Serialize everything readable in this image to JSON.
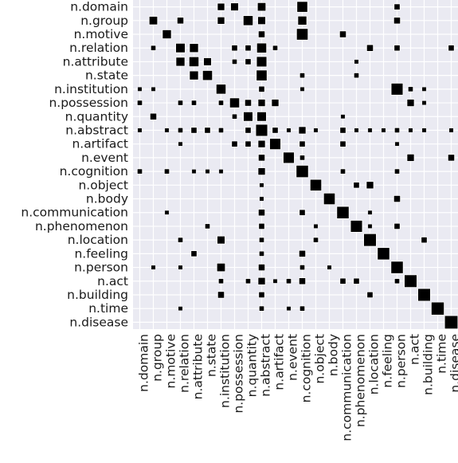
{
  "chart_data": {
    "type": "heatmap",
    "style": "hinton",
    "title": "",
    "xlabel": "",
    "ylabel": "",
    "grid": true,
    "background_color": "#eaeaf2",
    "grid_color": "#ffffff",
    "mark_fill_color": "#000000",
    "mark_outline_color": "#ffffff",
    "labels": [
      "n.domain",
      "n.group",
      "n.motive",
      "n.relation",
      "n.attribute",
      "n.state",
      "n.institution",
      "n.possession",
      "n.quantity",
      "n.abstract",
      "n.artifact",
      "n.event",
      "n.cognition",
      "n.object",
      "n.body",
      "n.communication",
      "n.phenomenon",
      "n.location",
      "n.feeling",
      "n.person",
      "n.act",
      "n.building",
      "n.time",
      "n.disease"
    ],
    "cells": [
      [
        0,
        6,
        0.3
      ],
      [
        0,
        7,
        0.35
      ],
      [
        0,
        9,
        0.4
      ],
      [
        0,
        12,
        0.65
      ],
      [
        0,
        19,
        0.2
      ],
      [
        1,
        1,
        0.4
      ],
      [
        1,
        3,
        0.25
      ],
      [
        1,
        6,
        0.3
      ],
      [
        1,
        8,
        0.55
      ],
      [
        1,
        9,
        0.35
      ],
      [
        1,
        12,
        0.45
      ],
      [
        1,
        19,
        0.25
      ],
      [
        2,
        2,
        0.45
      ],
      [
        2,
        9,
        0.25
      ],
      [
        2,
        12,
        0.75
      ],
      [
        2,
        15,
        0.25
      ],
      [
        3,
        1,
        0.15
      ],
      [
        3,
        3,
        0.5
      ],
      [
        3,
        4,
        0.45
      ],
      [
        3,
        7,
        0.2
      ],
      [
        3,
        8,
        0.2
      ],
      [
        3,
        9,
        0.55
      ],
      [
        3,
        10,
        0.15
      ],
      [
        3,
        17,
        0.25
      ],
      [
        3,
        19,
        0.2
      ],
      [
        3,
        23,
        0.2
      ],
      [
        4,
        3,
        0.45
      ],
      [
        4,
        4,
        0.55
      ],
      [
        4,
        5,
        0.35
      ],
      [
        4,
        7,
        0.15
      ],
      [
        4,
        8,
        0.2
      ],
      [
        4,
        9,
        0.6
      ],
      [
        4,
        16,
        0.1
      ],
      [
        5,
        4,
        0.45
      ],
      [
        5,
        5,
        0.55
      ],
      [
        5,
        9,
        0.65
      ],
      [
        5,
        12,
        0.15
      ],
      [
        5,
        16,
        0.15
      ],
      [
        6,
        0,
        0.1
      ],
      [
        6,
        1,
        0.1
      ],
      [
        6,
        6,
        0.55
      ],
      [
        6,
        9,
        0.2
      ],
      [
        6,
        12,
        0.1
      ],
      [
        6,
        19,
        0.8
      ],
      [
        6,
        20,
        0.15
      ],
      [
        6,
        21,
        0.1
      ],
      [
        7,
        0,
        0.15
      ],
      [
        7,
        3,
        0.15
      ],
      [
        7,
        4,
        0.15
      ],
      [
        7,
        6,
        0.15
      ],
      [
        7,
        7,
        0.55
      ],
      [
        7,
        8,
        0.25
      ],
      [
        7,
        9,
        0.3
      ],
      [
        7,
        10,
        0.3
      ],
      [
        7,
        20,
        0.3
      ],
      [
        7,
        21,
        0.1
      ],
      [
        8,
        1,
        0.25
      ],
      [
        8,
        7,
        0.15
      ],
      [
        8,
        8,
        0.5
      ],
      [
        8,
        9,
        0.5
      ],
      [
        8,
        15,
        0.1
      ],
      [
        9,
        0,
        0.1
      ],
      [
        9,
        2,
        0.1
      ],
      [
        9,
        3,
        0.15
      ],
      [
        9,
        4,
        0.2
      ],
      [
        9,
        5,
        0.2
      ],
      [
        9,
        6,
        0.15
      ],
      [
        9,
        8,
        0.2
      ],
      [
        9,
        9,
        0.8
      ],
      [
        9,
        10,
        0.2
      ],
      [
        9,
        11,
        0.1
      ],
      [
        9,
        12,
        0.3
      ],
      [
        9,
        13,
        0.1
      ],
      [
        9,
        15,
        0.2
      ],
      [
        9,
        16,
        0.1
      ],
      [
        9,
        17,
        0.1
      ],
      [
        9,
        18,
        0.1
      ],
      [
        9,
        19,
        0.15
      ],
      [
        9,
        20,
        0.1
      ],
      [
        9,
        21,
        0.1
      ],
      [
        9,
        23,
        0.1
      ],
      [
        10,
        3,
        0.1
      ],
      [
        10,
        7,
        0.2
      ],
      [
        10,
        8,
        0.2
      ],
      [
        10,
        9,
        0.3
      ],
      [
        10,
        10,
        0.7
      ],
      [
        10,
        12,
        0.2
      ],
      [
        10,
        15,
        0.2
      ],
      [
        10,
        19,
        0.1
      ],
      [
        11,
        9,
        0.25
      ],
      [
        11,
        11,
        0.7
      ],
      [
        11,
        12,
        0.15
      ],
      [
        11,
        20,
        0.3
      ],
      [
        11,
        23,
        0.25
      ],
      [
        12,
        0,
        0.15
      ],
      [
        12,
        2,
        0.15
      ],
      [
        12,
        4,
        0.1
      ],
      [
        12,
        5,
        0.1
      ],
      [
        12,
        6,
        0.1
      ],
      [
        12,
        9,
        0.3
      ],
      [
        12,
        12,
        0.85
      ],
      [
        12,
        15,
        0.15
      ],
      [
        12,
        19,
        0.15
      ],
      [
        13,
        9,
        0.1
      ],
      [
        13,
        13,
        0.75
      ],
      [
        13,
        16,
        0.2
      ],
      [
        13,
        17,
        0.3
      ],
      [
        14,
        9,
        0.1
      ],
      [
        14,
        14,
        0.75
      ],
      [
        14,
        19,
        0.25
      ],
      [
        15,
        2,
        0.1
      ],
      [
        15,
        9,
        0.25
      ],
      [
        15,
        12,
        0.2
      ],
      [
        15,
        15,
        0.85
      ],
      [
        15,
        17,
        0.1
      ],
      [
        16,
        5,
        0.15
      ],
      [
        16,
        9,
        0.2
      ],
      [
        16,
        13,
        0.1
      ],
      [
        16,
        16,
        0.8
      ],
      [
        16,
        17,
        0.1
      ],
      [
        16,
        19,
        0.2
      ],
      [
        17,
        3,
        0.15
      ],
      [
        17,
        6,
        0.35
      ],
      [
        17,
        9,
        0.15
      ],
      [
        17,
        13,
        0.15
      ],
      [
        17,
        17,
        0.9
      ],
      [
        17,
        21,
        0.2
      ],
      [
        18,
        4,
        0.2
      ],
      [
        18,
        9,
        0.15
      ],
      [
        18,
        12,
        0.25
      ],
      [
        18,
        18,
        0.85
      ],
      [
        19,
        1,
        0.1
      ],
      [
        19,
        3,
        0.1
      ],
      [
        19,
        6,
        0.4
      ],
      [
        19,
        9,
        0.25
      ],
      [
        19,
        12,
        0.15
      ],
      [
        19,
        14,
        0.1
      ],
      [
        19,
        19,
        0.85
      ],
      [
        20,
        6,
        0.15
      ],
      [
        20,
        8,
        0.15
      ],
      [
        20,
        9,
        0.3
      ],
      [
        20,
        10,
        0.1
      ],
      [
        20,
        11,
        0.15
      ],
      [
        20,
        12,
        0.25
      ],
      [
        20,
        15,
        0.2
      ],
      [
        20,
        16,
        0.2
      ],
      [
        20,
        19,
        0.15
      ],
      [
        20,
        20,
        0.9
      ],
      [
        21,
        6,
        0.25
      ],
      [
        21,
        9,
        0.2
      ],
      [
        21,
        17,
        0.2
      ],
      [
        21,
        21,
        0.9
      ],
      [
        22,
        3,
        0.1
      ],
      [
        22,
        9,
        0.15
      ],
      [
        22,
        11,
        0.1
      ],
      [
        22,
        12,
        0.15
      ],
      [
        22,
        22,
        0.95
      ],
      [
        23,
        23,
        1.0
      ]
    ]
  }
}
